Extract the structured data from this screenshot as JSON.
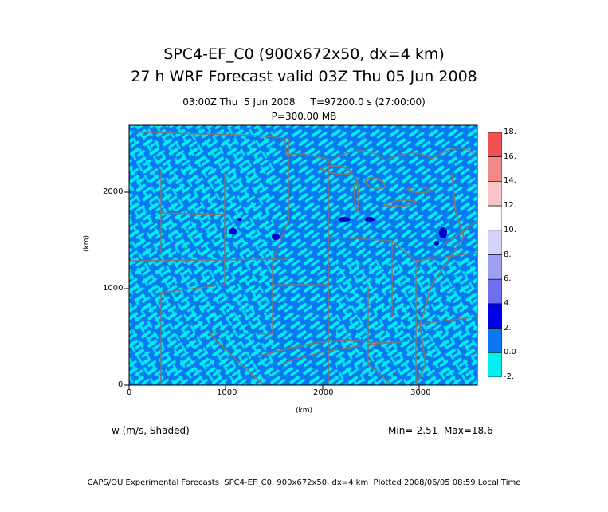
{
  "title_line1": "SPC4-EF_C0 (900x672x50, dx=4 km)",
  "title_line2": "27 h WRF Forecast valid 03Z Thu 05 Jun 2008",
  "time_line": "03:00Z Thu  5 Jun 2008     T=97200.0 s (27:00:00)",
  "level_line": "P=300.00 MB",
  "x_axis": {
    "label": "(km)",
    "ticks": [
      "0",
      "1000",
      "2000",
      "3000"
    ],
    "range": [
      0,
      3600
    ]
  },
  "y_axis": {
    "label": "(km)",
    "ticks": [
      "0",
      "1000",
      "2000"
    ],
    "range": [
      0,
      2700
    ]
  },
  "variable_label": "w (m/s, Shaded)",
  "minmax_label": "Min=-2.51  Max=18.6",
  "footer": "CAPS/OU Experimental Forecasts  SPC4-EF_C0, 900x672x50, dx=4 km  Plotted 2008/06/05 08:59 Local Time",
  "colorbar": {
    "labels": [
      "18.",
      "16.",
      "14.",
      "12.",
      "10.",
      "8.",
      "6.",
      "4.",
      "2.",
      "0.0",
      "-2."
    ],
    "colors": [
      "#f05050",
      "#f08a8a",
      "#f7c5c5",
      "#ffffff",
      "#d2d2fa",
      "#a0a0f0",
      "#6e6ef0",
      "#0000e6",
      "#0a78f0",
      "#00f0f0"
    ]
  },
  "map_colors": {
    "cyan": "#00f0f0",
    "blue": "#0a78f0",
    "dark": "#0000c8",
    "border": "#787878"
  }
}
